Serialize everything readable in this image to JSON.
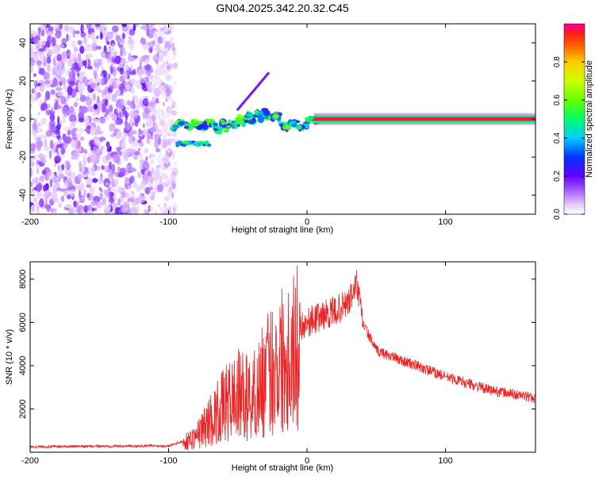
{
  "title": "GN04.2025.342.20.32.C45",
  "chart_data": [
    {
      "type": "heatmap",
      "title": "GN04.2025.342.20.32.C45",
      "xlabel": "Height of straight line (km)",
      "ylabel": "Frequency (Hz)",
      "xlim": [
        -200,
        165
      ],
      "ylim": [
        -50,
        50
      ],
      "x_ticks": [
        -200,
        -100,
        0,
        100
      ],
      "x_tick_labels": [
        "-200",
        "-100",
        "0",
        "100"
      ],
      "y_ticks": [
        -40,
        -20,
        0,
        20,
        40
      ],
      "y_tick_labels": [
        "-40",
        "-20",
        "0",
        "20",
        "40"
      ],
      "colorbar": {
        "label": "Normalized spectral amplitude",
        "range": [
          0,
          1
        ],
        "ticks": [
          0.0,
          0.2,
          0.4,
          0.6,
          0.8
        ],
        "tick_labels": [
          "0.0",
          "0.2",
          "0.4",
          "0.6",
          "0.8"
        ]
      },
      "regions": [
        {
          "name": "noise",
          "x_range": [
            -200,
            -95
          ],
          "y_range": [
            -50,
            50
          ],
          "amplitude": 0.15
        },
        {
          "name": "onset",
          "x_range": [
            -100,
            -60
          ],
          "y_range": [
            -15,
            2
          ],
          "amplitude": 0.45
        },
        {
          "name": "trace",
          "x_range": [
            -60,
            5
          ],
          "y_range": [
            -4,
            3
          ],
          "amplitude": 0.5
        },
        {
          "name": "stable-tone",
          "x_range": [
            5,
            165
          ],
          "y_range": [
            -1,
            1
          ],
          "amplitude": 1.0
        }
      ],
      "spur": {
        "x": [
          -50,
          -28
        ],
        "y": [
          5,
          24
        ]
      }
    },
    {
      "type": "line",
      "xlabel": "Height of straight line (km)",
      "ylabel": "SNR (10 * v/v)",
      "xlim": [
        -200,
        165
      ],
      "ylim": [
        0,
        8800
      ],
      "x_ticks": [
        -200,
        -100,
        0,
        100
      ],
      "x_tick_labels": [
        "-200",
        "-100",
        "0",
        "100"
      ],
      "y_ticks": [
        2000,
        4000,
        6000,
        8000
      ],
      "y_tick_labels": [
        "2000",
        "4000",
        "6000",
        "8000"
      ],
      "color": "#ee2222",
      "envelope": {
        "x": [
          -200,
          -100,
          -90,
          -80,
          -70,
          -60,
          -50,
          -40,
          -30,
          -20,
          -10,
          0,
          10,
          20,
          30,
          36,
          40,
          50,
          70,
          100,
          130,
          165
        ],
        "y": [
          250,
          300,
          500,
          900,
          1800,
          2600,
          3200,
          3000,
          4200,
          5200,
          5700,
          6000,
          6300,
          6500,
          6900,
          7800,
          6000,
          4700,
          4200,
          3500,
          2900,
          2500
        ]
      }
    }
  ]
}
